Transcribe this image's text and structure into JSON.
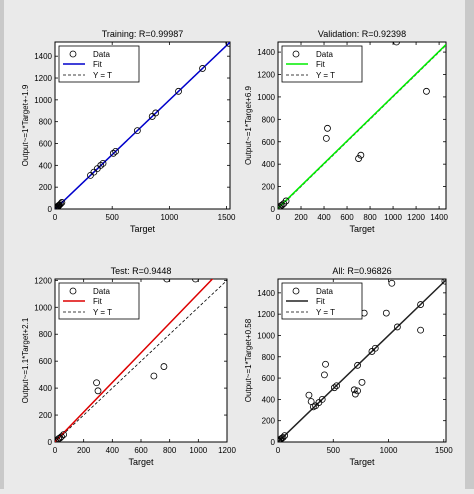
{
  "chart_data": [
    {
      "type": "scatter",
      "title": "Training: R=0.99987",
      "xlabel": "Target",
      "ylabel": "Output~=1*Target+-1.9",
      "xlim": [
        0,
        1530
      ],
      "ylim": [
        0,
        1530
      ],
      "xticks": [
        0,
        500,
        1000,
        1500
      ],
      "yticks": [
        0,
        200,
        400,
        600,
        800,
        1000,
        1200,
        1400
      ],
      "legend_position": "top-left",
      "legend": [
        "Data",
        "Fit",
        "Y = T"
      ],
      "fit": {
        "slope": 1,
        "intercept": -1.9,
        "color": "#0000cc"
      },
      "points": [
        [
          5,
          5
        ],
        [
          10,
          10
        ],
        [
          15,
          13
        ],
        [
          20,
          18
        ],
        [
          25,
          25
        ],
        [
          30,
          28
        ],
        [
          35,
          34
        ],
        [
          40,
          38
        ],
        [
          50,
          48
        ],
        [
          60,
          60
        ],
        [
          310,
          308
        ],
        [
          340,
          338
        ],
        [
          370,
          370
        ],
        [
          400,
          400
        ],
        [
          420,
          418
        ],
        [
          510,
          510
        ],
        [
          530,
          528
        ],
        [
          720,
          718
        ],
        [
          850,
          848
        ],
        [
          880,
          880
        ],
        [
          1080,
          1078
        ],
        [
          1290,
          1288
        ],
        [
          1520,
          1518
        ]
      ]
    },
    {
      "type": "scatter",
      "title": "Validation: R=0.92398",
      "xlabel": "Target",
      "ylabel": "Output~=1*Target+6.9",
      "xlim": [
        0,
        1460
      ],
      "ylim": [
        0,
        1490
      ],
      "xticks": [
        0,
        200,
        400,
        600,
        800,
        1000,
        1200,
        1400
      ],
      "yticks": [
        0,
        200,
        400,
        600,
        800,
        1000,
        1200,
        1400
      ],
      "legend_position": "top-left",
      "legend": [
        "Data",
        "Fit",
        "Y = T"
      ],
      "fit": {
        "slope": 1,
        "intercept": 6.9,
        "color": "#00ee00"
      },
      "points": [
        [
          5,
          5
        ],
        [
          15,
          15
        ],
        [
          25,
          28
        ],
        [
          35,
          35
        ],
        [
          50,
          48
        ],
        [
          70,
          72
        ],
        [
          420,
          630
        ],
        [
          430,
          720
        ],
        [
          700,
          450
        ],
        [
          720,
          480
        ],
        [
          1030,
          1490
        ],
        [
          1290,
          1050
        ]
      ]
    },
    {
      "type": "scatter",
      "title": "Test: R=0.9448",
      "xlabel": "Target",
      "ylabel": "Output~=1.1*Target+2.1",
      "xlim": [
        0,
        1200
      ],
      "ylim": [
        0,
        1210
      ],
      "xticks": [
        0,
        200,
        400,
        600,
        800,
        1000,
        1200
      ],
      "yticks": [
        0,
        200,
        400,
        600,
        800,
        1000,
        1200
      ],
      "legend_position": "top-left",
      "legend": [
        "Data",
        "Fit",
        "Y = T"
      ],
      "fit": {
        "slope": 1.1,
        "intercept": 2.1,
        "color": "#dd0000"
      },
      "points": [
        [
          5,
          5
        ],
        [
          15,
          12
        ],
        [
          25,
          25
        ],
        [
          35,
          30
        ],
        [
          45,
          40
        ],
        [
          60,
          55
        ],
        [
          290,
          440
        ],
        [
          300,
          380
        ],
        [
          690,
          490
        ],
        [
          760,
          560
        ],
        [
          780,
          1210
        ],
        [
          980,
          1210
        ]
      ]
    },
    {
      "type": "scatter",
      "title": "All: R=0.96826",
      "xlabel": "Target",
      "ylabel": "Output~=1*Target+0.58",
      "xlim": [
        0,
        1520
      ],
      "ylim": [
        0,
        1530
      ],
      "xticks": [
        0,
        500,
        1000,
        1500
      ],
      "yticks": [
        0,
        200,
        400,
        600,
        800,
        1000,
        1200,
        1400
      ],
      "legend_position": "top-left",
      "legend": [
        "Data",
        "Fit",
        "Y = T"
      ],
      "fit": {
        "slope": 1,
        "intercept": 0.58,
        "color": "#222222"
      },
      "points": [
        [
          5,
          5
        ],
        [
          10,
          10
        ],
        [
          20,
          18
        ],
        [
          25,
          28
        ],
        [
          35,
          35
        ],
        [
          45,
          42
        ],
        [
          60,
          60
        ],
        [
          280,
          440
        ],
        [
          300,
          380
        ],
        [
          320,
          330
        ],
        [
          340,
          340
        ],
        [
          370,
          370
        ],
        [
          400,
          400
        ],
        [
          420,
          630
        ],
        [
          430,
          730
        ],
        [
          510,
          510
        ],
        [
          530,
          528
        ],
        [
          690,
          490
        ],
        [
          700,
          450
        ],
        [
          720,
          480
        ],
        [
          720,
          720
        ],
        [
          760,
          560
        ],
        [
          780,
          1210
        ],
        [
          850,
          850
        ],
        [
          880,
          880
        ],
        [
          980,
          1210
        ],
        [
          1030,
          1490
        ],
        [
          1080,
          1080
        ],
        [
          1290,
          1050
        ],
        [
          1290,
          1290
        ],
        [
          1510,
          1510
        ]
      ]
    }
  ]
}
